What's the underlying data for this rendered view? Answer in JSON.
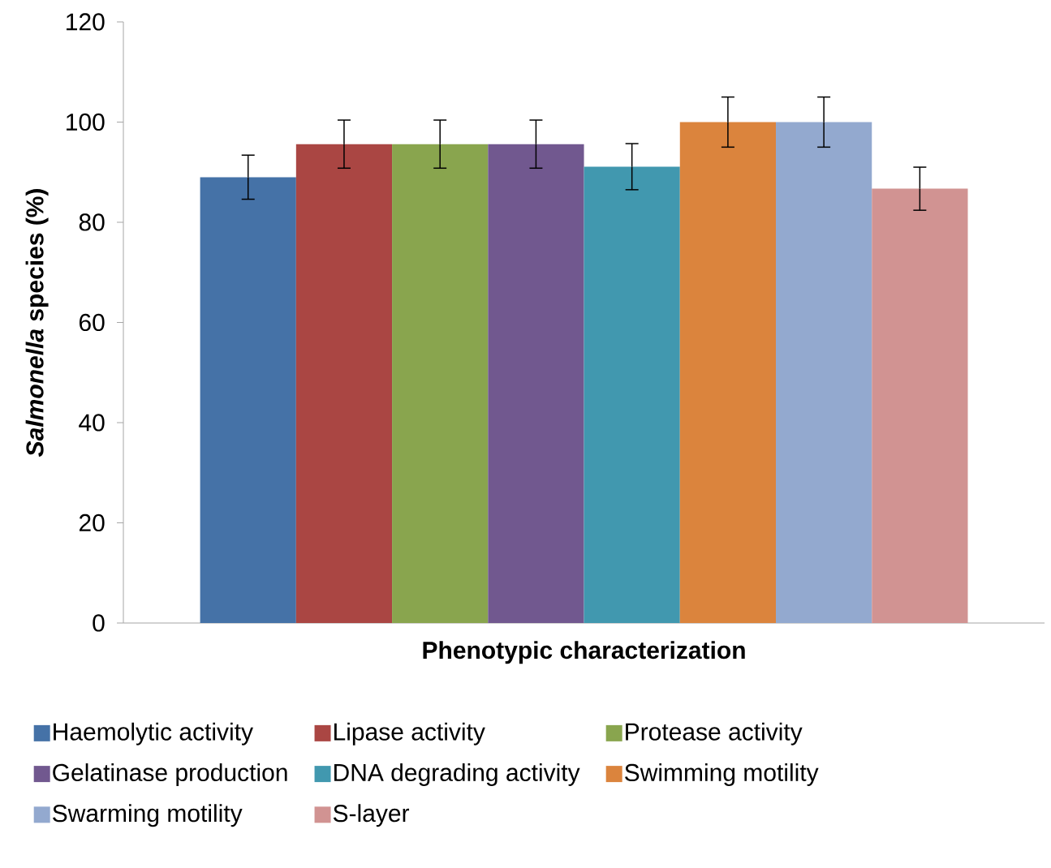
{
  "chart_data": {
    "type": "bar",
    "xlabel": "Phenotypic characterization",
    "ylabel": "*Salmonella* species (%)",
    "categories": [
      null
    ],
    "series": [
      {
        "name": "Haemolytic activity",
        "color": "#4572a7",
        "values": [
          89
        ],
        "errors": [
          4.4
        ]
      },
      {
        "name": "Lipase activity",
        "color": "#aa4643",
        "values": [
          95.6
        ],
        "errors": [
          4.8
        ]
      },
      {
        "name": "Protease activity",
        "color": "#89a54e",
        "values": [
          95.6
        ],
        "errors": [
          4.8
        ]
      },
      {
        "name": "Gelatinase production",
        "color": "#71588f",
        "values": [
          95.6
        ],
        "errors": [
          4.8
        ]
      },
      {
        "name": "DNA degrading activity",
        "color": "#4198af",
        "values": [
          91.1
        ],
        "errors": [
          4.6
        ]
      },
      {
        "name": "Swimming motility",
        "color": "#db843d",
        "values": [
          100
        ],
        "errors": [
          5
        ]
      },
      {
        "name": "Swarming motility",
        "color": "#93a9cf",
        "values": [
          100
        ],
        "errors": [
          5
        ]
      },
      {
        "name": "S-layer",
        "color": "#d19392",
        "values": [
          86.7
        ],
        "errors": [
          4.3
        ]
      }
    ],
    "ylim": [
      0,
      120
    ],
    "yticks": [
      0,
      20,
      40,
      60,
      80,
      100,
      120
    ],
    "grid": false,
    "legend": "bottom"
  }
}
